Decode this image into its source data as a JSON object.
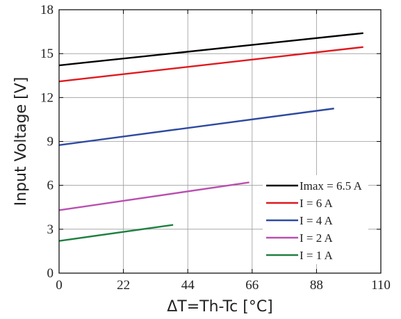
{
  "chart_data": {
    "type": "line",
    "title": "",
    "xlabel": "ΔT=Th-Tc [°C]",
    "ylabel": "Input Voltage [V]",
    "xlim": [
      0,
      110
    ],
    "ylim": [
      0,
      18
    ],
    "xticks": [
      0,
      22,
      44,
      66,
      88,
      110
    ],
    "yticks": [
      0,
      3,
      6,
      9,
      12,
      15,
      18
    ],
    "grid": true,
    "legend_position": "bottom-right",
    "series": [
      {
        "name": "Imax = 6.5 A",
        "color": "#000000",
        "x": [
          0,
          104
        ],
        "y": [
          14.2,
          16.4
        ]
      },
      {
        "name": "I = 6 A",
        "color": "#e0191e",
        "x": [
          0,
          104
        ],
        "y": [
          13.1,
          15.45
        ]
      },
      {
        "name": "I = 4 A",
        "color": "#2e4aa0",
        "x": [
          0,
          94
        ],
        "y": [
          8.75,
          11.25
        ]
      },
      {
        "name": "I = 2 A",
        "color": "#b94fb0",
        "x": [
          0,
          65
        ],
        "y": [
          4.3,
          6.2
        ]
      },
      {
        "name": "I = 1 A",
        "color": "#1e8040",
        "x": [
          0,
          39
        ],
        "y": [
          2.2,
          3.3
        ]
      }
    ]
  }
}
